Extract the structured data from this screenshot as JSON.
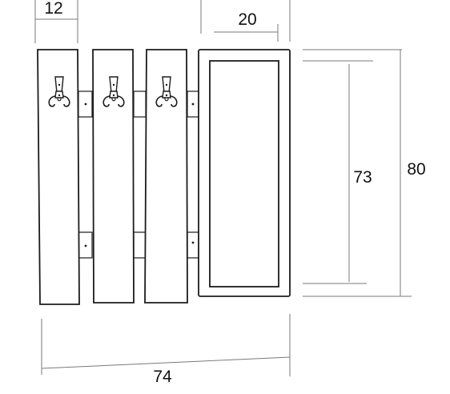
{
  "diagram": {
    "dimensions": {
      "board_width": "12",
      "mirror_width": "20",
      "inner_height": "73",
      "total_height": "80",
      "total_width": "74"
    },
    "components": {
      "hooks": 3,
      "boards": 3,
      "mirror_panels": 1
    },
    "colors": {
      "line": "#1c1c1c",
      "dimension_line": "#7a7a7a",
      "background": "#ffffff"
    }
  }
}
